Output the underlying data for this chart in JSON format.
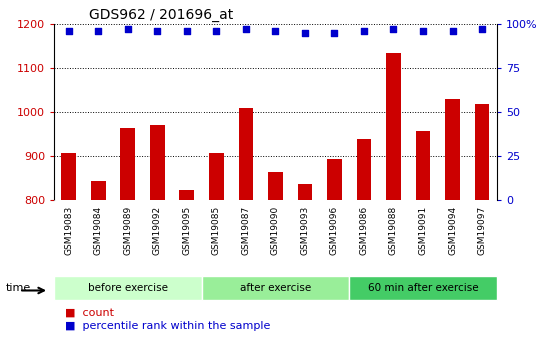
{
  "title": "GDS962 / 201696_at",
  "categories": [
    "GSM19083",
    "GSM19084",
    "GSM19089",
    "GSM19092",
    "GSM19095",
    "GSM19085",
    "GSM19087",
    "GSM19090",
    "GSM19093",
    "GSM19096",
    "GSM19086",
    "GSM19088",
    "GSM19091",
    "GSM19094",
    "GSM19097"
  ],
  "counts": [
    908,
    843,
    963,
    970,
    823,
    906,
    1010,
    865,
    836,
    893,
    940,
    1135,
    958,
    1030,
    1018
  ],
  "percentile_ranks": [
    96,
    96,
    97,
    96,
    96,
    96,
    97,
    96,
    95,
    95,
    96,
    97,
    96,
    96,
    97
  ],
  "groups": [
    {
      "label": "before exercise",
      "start": 0,
      "end": 5,
      "color": "#ccffcc"
    },
    {
      "label": "after exercise",
      "start": 5,
      "end": 10,
      "color": "#99ee99"
    },
    {
      "label": "60 min after exercise",
      "start": 10,
      "end": 15,
      "color": "#44cc66"
    }
  ],
  "ylim_left": [
    800,
    1200
  ],
  "ylim_right": [
    0,
    100
  ],
  "yticks_left": [
    800,
    900,
    1000,
    1100,
    1200
  ],
  "yticks_right": [
    0,
    25,
    50,
    75,
    100
  ],
  "bar_color": "#cc0000",
  "dot_color": "#0000cc",
  "bar_width": 0.5,
  "tick_label_color": "#cc0000",
  "right_tick_color": "#0000cc",
  "grid_color": "black",
  "bg_color": "#ffffff",
  "xtick_bg_color": "#cccccc",
  "legend_count_color": "#cc0000",
  "legend_pct_color": "#0000cc",
  "title_fontsize": 10,
  "axis_fontsize": 8,
  "xtick_fontsize": 6.5,
  "legend_fontsize": 8
}
